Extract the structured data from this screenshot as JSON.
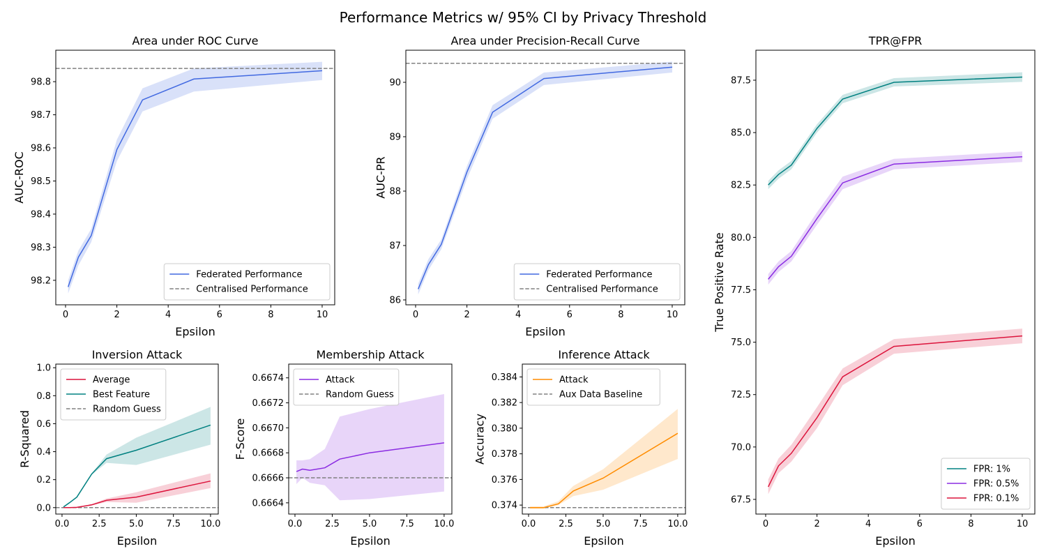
{
  "suptitle": "Performance Metrics w/ 95% CI by Privacy Threshold",
  "chart_data": [
    {
      "type": "line",
      "title": "Area under ROC Curve",
      "xlabel": "Epsilon",
      "ylabel": "AUC-ROC",
      "xlim": [
        -0.38,
        10.49
      ],
      "ylim": [
        98.126,
        98.895
      ],
      "xticks": [
        "0",
        "2",
        "4",
        "6",
        "8",
        "10"
      ],
      "xtick_values": [
        0,
        2,
        4,
        6,
        8,
        10
      ],
      "yticks": [
        "98.2",
        "98.3",
        "98.4",
        "98.5",
        "98.6",
        "98.7",
        "98.8"
      ],
      "ytick_values": [
        98.2,
        98.3,
        98.4,
        98.5,
        98.6,
        98.7,
        98.8
      ],
      "legend": "lower-right",
      "series": [
        {
          "name": "Federated Performance",
          "color": "#4169e1",
          "x": [
            0.1,
            0.5,
            1,
            2,
            3,
            5,
            10
          ],
          "y": [
            98.18,
            98.27,
            98.335,
            98.595,
            98.745,
            98.808,
            98.833
          ],
          "lower": [
            98.16,
            98.245,
            98.315,
            98.56,
            98.71,
            98.77,
            98.805
          ],
          "upper": [
            98.2,
            98.29,
            98.355,
            98.625,
            98.78,
            98.84,
            98.86
          ]
        }
      ],
      "hlines": [
        {
          "name": "Centralised Performance",
          "value": 98.84,
          "color": "#808080"
        }
      ]
    },
    {
      "type": "line",
      "title": "Area under Precision-Recall Curve",
      "xlabel": "Epsilon",
      "ylabel": "AUC-PR",
      "xlim": [
        -0.38,
        10.49
      ],
      "ylim": [
        85.91,
        90.59
      ],
      "xticks": [
        "0",
        "2",
        "4",
        "6",
        "8",
        "10"
      ],
      "xtick_values": [
        0,
        2,
        4,
        6,
        8,
        10
      ],
      "yticks": [
        "86",
        "87",
        "88",
        "89",
        "90"
      ],
      "ytick_values": [
        86,
        87,
        88,
        89,
        90
      ],
      "legend": "lower-right",
      "series": [
        {
          "name": "Federated Performance",
          "color": "#4169e1",
          "x": [
            0.1,
            0.5,
            1,
            2,
            3,
            5,
            10
          ],
          "y": [
            86.2,
            86.65,
            87.02,
            88.35,
            89.45,
            90.07,
            90.28
          ],
          "lower": [
            86.1,
            86.55,
            86.93,
            88.22,
            89.33,
            89.95,
            90.18
          ],
          "upper": [
            86.3,
            86.75,
            87.11,
            88.46,
            89.58,
            90.18,
            90.38
          ]
        }
      ],
      "hlines": [
        {
          "name": "Centralised Performance",
          "value": 90.35,
          "color": "#808080"
        }
      ]
    },
    {
      "type": "line",
      "title": "TPR@FPR",
      "xlabel": "Epsilon",
      "ylabel": "True Positive Rate",
      "xlim": [
        -0.38,
        10.49
      ],
      "ylim": [
        66.8,
        88.93
      ],
      "xticks": [
        "0",
        "2",
        "4",
        "6",
        "8",
        "10"
      ],
      "xtick_values": [
        0,
        2,
        4,
        6,
        8,
        10
      ],
      "yticks": [
        "67.5",
        "70.0",
        "72.5",
        "75.0",
        "77.5",
        "80.0",
        "82.5",
        "85.0",
        "87.5"
      ],
      "ytick_values": [
        67.5,
        70,
        72.5,
        75,
        77.5,
        80,
        82.5,
        85,
        87.5
      ],
      "legend": "lower-right",
      "series": [
        {
          "name": "FPR: 1%",
          "color": "#008080",
          "x": [
            0.1,
            0.5,
            1,
            2,
            3,
            5,
            10
          ],
          "y": [
            82.5,
            83.0,
            83.45,
            85.2,
            86.6,
            87.4,
            87.65
          ],
          "lower": [
            82.3,
            82.8,
            83.25,
            85.0,
            86.4,
            87.2,
            87.42
          ],
          "upper": [
            82.7,
            83.2,
            83.65,
            85.4,
            86.8,
            87.6,
            87.88
          ]
        },
        {
          "name": "FPR: 0.5%",
          "color": "#8a2be2",
          "x": [
            0.1,
            0.5,
            1,
            2,
            3,
            5,
            10
          ],
          "y": [
            78.0,
            78.6,
            79.1,
            80.9,
            82.6,
            83.5,
            83.85
          ],
          "lower": [
            77.75,
            78.35,
            78.85,
            80.6,
            82.3,
            83.25,
            83.6
          ],
          "upper": [
            78.25,
            78.85,
            79.35,
            81.2,
            82.9,
            83.75,
            84.1
          ]
        },
        {
          "name": "FPR: 0.1%",
          "color": "#dc143c",
          "x": [
            0.1,
            0.5,
            1,
            2,
            3,
            5,
            10
          ],
          "y": [
            68.1,
            69.1,
            69.7,
            71.4,
            73.35,
            74.8,
            75.3
          ],
          "lower": [
            67.75,
            68.75,
            69.3,
            70.9,
            72.95,
            74.45,
            74.95
          ],
          "upper": [
            68.45,
            69.45,
            70.1,
            71.9,
            73.75,
            75.15,
            75.65
          ]
        }
      ],
      "hlines": []
    },
    {
      "type": "line",
      "title": "Inversion Attack",
      "xlabel": "Epsilon",
      "ylabel": "R-Squared",
      "xlim": [
        -0.42,
        10.52
      ],
      "ylim": [
        -0.046,
        1.026
      ],
      "xticks": [
        "0.0",
        "2.5",
        "5.0",
        "7.5",
        "10.0"
      ],
      "xtick_values": [
        0,
        2.5,
        5,
        7.5,
        10
      ],
      "yticks": [
        "0.0",
        "0.2",
        "0.4",
        "0.6",
        "0.8",
        "1.0"
      ],
      "ytick_values": [
        0,
        0.2,
        0.4,
        0.6,
        0.8,
        1.0
      ],
      "legend": "upper-left",
      "series": [
        {
          "name": "Average",
          "color": "#dc143c",
          "x": [
            0.1,
            0.5,
            1,
            2,
            3,
            5,
            10
          ],
          "y": [
            0,
            0,
            0.002,
            0.02,
            0.052,
            0.075,
            0.19
          ],
          "lower": [
            0,
            0,
            0,
            0.015,
            0.04,
            0.035,
            0.14
          ],
          "upper": [
            0,
            0,
            0.005,
            0.025,
            0.065,
            0.11,
            0.245
          ]
        },
        {
          "name": "Best Feature",
          "color": "#008080",
          "x": [
            0.1,
            0.5,
            1,
            2,
            3,
            5,
            10
          ],
          "y": [
            0.005,
            0.035,
            0.075,
            0.24,
            0.35,
            0.41,
            0.59
          ],
          "lower": [
            0,
            0.03,
            0.07,
            0.235,
            0.32,
            0.305,
            0.45
          ],
          "upper": [
            0.01,
            0.04,
            0.08,
            0.245,
            0.38,
            0.5,
            0.72
          ]
        }
      ],
      "hlines": [
        {
          "name": "Random Guess",
          "value": 0,
          "color": "#808080"
        }
      ]
    },
    {
      "type": "line",
      "title": "Membership Attack",
      "xlabel": "Epsilon",
      "ylabel": "F-Score",
      "xlim": [
        -0.42,
        10.52
      ],
      "ylim": [
        0.66631,
        0.66751
      ],
      "xticks": [
        "0.0",
        "2.5",
        "5.0",
        "7.5",
        "10.0"
      ],
      "xtick_values": [
        0,
        2.5,
        5,
        7.5,
        10
      ],
      "yticks": [
        "0.6664",
        "0.6666",
        "0.6668",
        "0.6670",
        "0.6672",
        "0.6674"
      ],
      "ytick_values": [
        0.6664,
        0.6666,
        0.6668,
        0.667,
        0.6672,
        0.6674
      ],
      "legend": "upper-left",
      "series": [
        {
          "name": "Attack",
          "color": "#8a2be2",
          "x": [
            0.1,
            0.5,
            1,
            2,
            3,
            5,
            10
          ],
          "y": [
            0.66665,
            0.66667,
            0.66666,
            0.66668,
            0.66675,
            0.6668,
            0.66688
          ],
          "lower": [
            0.66655,
            0.6666,
            0.66656,
            0.66654,
            0.66642,
            0.66643,
            0.66649
          ],
          "upper": [
            0.66674,
            0.66674,
            0.66675,
            0.66683,
            0.66709,
            0.66715,
            0.66727
          ]
        }
      ],
      "hlines": [
        {
          "name": "Random Guess",
          "value": 0.6666,
          "color": "#808080"
        }
      ]
    },
    {
      "type": "line",
      "title": "Inference Attack",
      "xlabel": "Epsilon",
      "ylabel": "Accuracy",
      "xlim": [
        -0.42,
        10.52
      ],
      "ylim": [
        0.3733,
        0.385
      ],
      "xticks": [
        "0.0",
        "2.5",
        "5.0",
        "7.5",
        "10.0"
      ],
      "xtick_values": [
        0,
        2.5,
        5,
        7.5,
        10
      ],
      "yticks": [
        "0.374",
        "0.376",
        "0.378",
        "0.380",
        "0.382",
        "0.384"
      ],
      "ytick_values": [
        0.374,
        0.376,
        0.378,
        0.38,
        0.382,
        0.384
      ],
      "legend": "upper-left",
      "series": [
        {
          "name": "Attack",
          "color": "#ff8c00",
          "x": [
            0.1,
            0.5,
            1,
            2,
            3,
            5,
            10
          ],
          "y": [
            0.3738,
            0.3738,
            0.3738,
            0.3741,
            0.3751,
            0.3761,
            0.3796
          ],
          "lower": [
            0.3737,
            0.3737,
            0.3737,
            0.374,
            0.3747,
            0.3752,
            0.3776
          ],
          "upper": [
            0.3739,
            0.3739,
            0.3739,
            0.3743,
            0.3755,
            0.3768,
            0.3815
          ]
        }
      ],
      "hlines": [
        {
          "name": "Aux Data Baseline",
          "value": 0.3738,
          "color": "#808080"
        }
      ]
    }
  ]
}
